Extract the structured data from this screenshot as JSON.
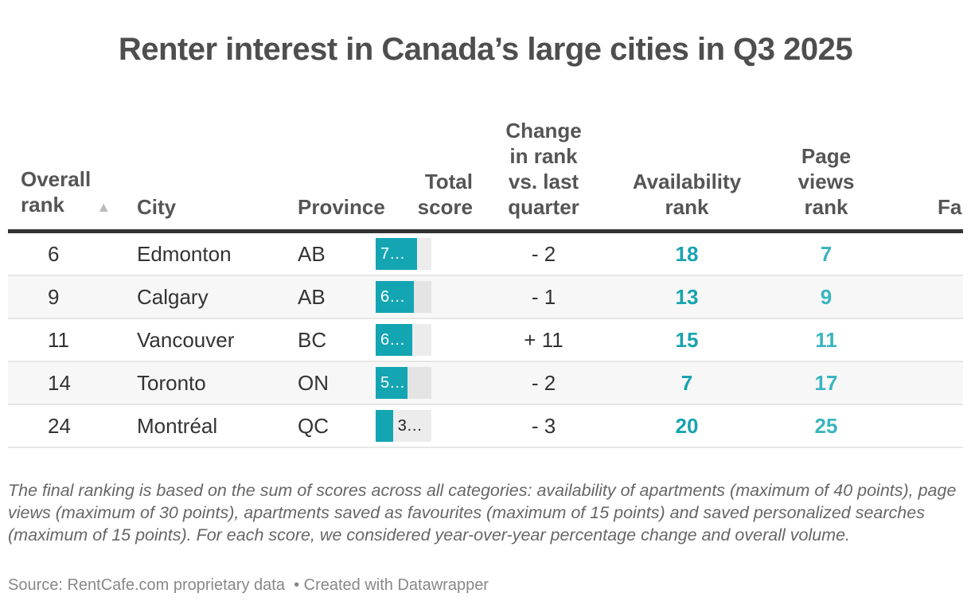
{
  "title": "Renter interest in Canada’s large cities in Q3 2025",
  "chart_data": {
    "type": "table",
    "columns": [
      "Overall rank",
      "City",
      "Province",
      "Total score",
      "Change in rank vs. last quarter",
      "Availability rank",
      "Page views rank",
      "Fa"
    ],
    "sort": {
      "column": "Overall rank",
      "direction": "ascending",
      "icon": "sort-ascending-icon"
    },
    "bar_color": "#14a5b3",
    "rows": [
      {
        "rank": "6",
        "city": "Edmonton",
        "province": "AB",
        "score": 74,
        "score_label": "7…",
        "change": "- 2",
        "availability": "18",
        "pageviews": "7"
      },
      {
        "rank": "9",
        "city": "Calgary",
        "province": "AB",
        "score": 69,
        "score_label": "6…",
        "change": "- 1",
        "availability": "13",
        "pageviews": "9"
      },
      {
        "rank": "11",
        "city": "Vancouver",
        "province": "BC",
        "score": 66,
        "score_label": "6…",
        "change": "+ 11",
        "availability": "15",
        "pageviews": "11"
      },
      {
        "rank": "14",
        "city": "Toronto",
        "province": "ON",
        "score": 57,
        "score_label": "5…",
        "change": "- 2",
        "availability": "7",
        "pageviews": "17"
      },
      {
        "rank": "24",
        "city": "Montréal",
        "province": "QC",
        "score": 31,
        "score_label": "3…",
        "change": "- 3",
        "availability": "20",
        "pageviews": "25"
      }
    ],
    "score_max": 100
  },
  "note": "The final ranking is based on the sum of scores across all categories: availability of apartments (maximum of 40 points), page views (maximum of 30 points), apartments saved as favourites (maximum of 15 points) and saved personalized searches (maximum of 15 points). For each score, we considered year-over-year percentage change and overall volume.",
  "source": "Source: RentCafe.com proprietary data",
  "credit": "• Created with Datawrapper"
}
